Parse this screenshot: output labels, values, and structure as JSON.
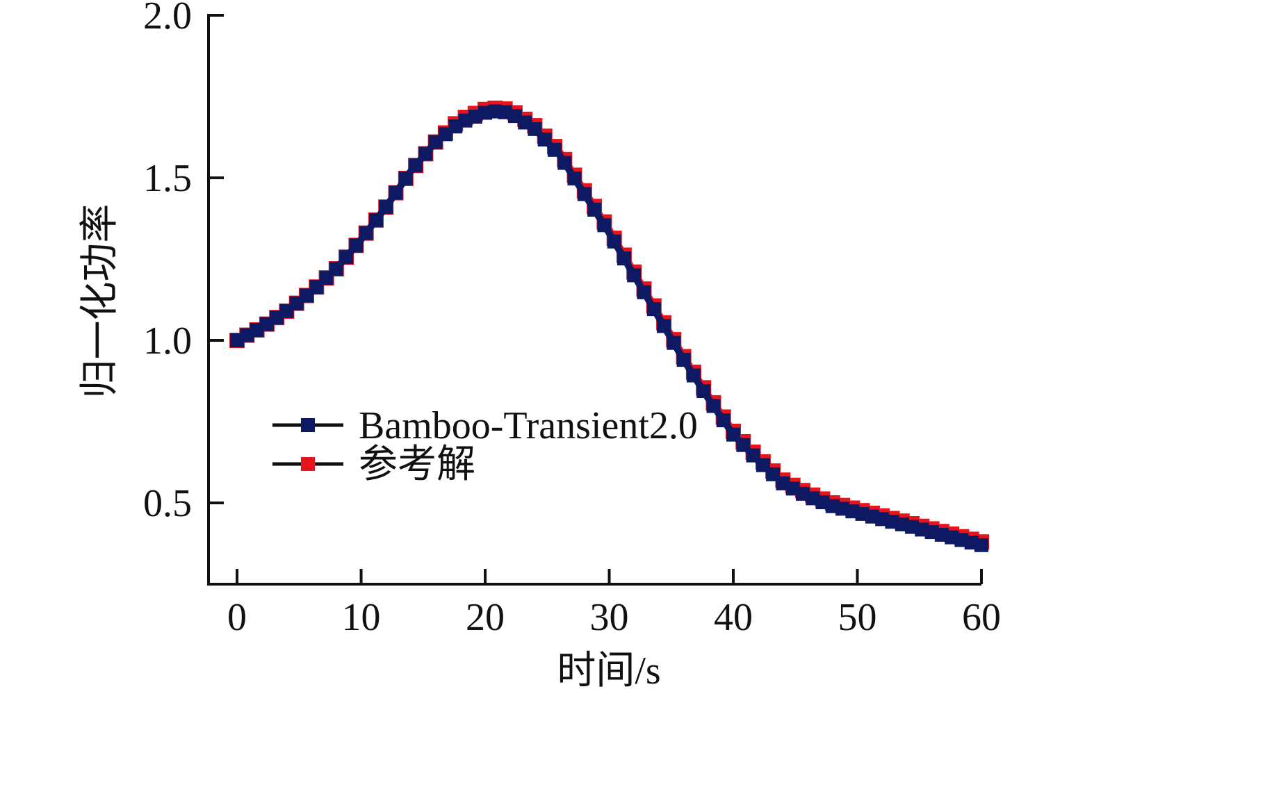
{
  "chart_data": {
    "type": "line",
    "title": "",
    "xlabel": "时间/s",
    "ylabel": "归一化功率",
    "xlim": [
      -2.3,
      60
    ],
    "ylim": [
      0.25,
      2.0
    ],
    "xticks": [
      0,
      10,
      20,
      30,
      40,
      50,
      60
    ],
    "xtick_labels": [
      "0",
      "10",
      "20",
      "30",
      "40",
      "50",
      "60"
    ],
    "yticks": [
      0.5,
      1.0,
      1.5,
      2.0
    ],
    "ytick_labels": [
      "0.5",
      "1.0",
      "1.5",
      "2.0"
    ],
    "grid": false,
    "legend_position": "left-center",
    "x": [
      0,
      2,
      4,
      6,
      8,
      10,
      12,
      14,
      16,
      18,
      20,
      21,
      22,
      24,
      26,
      28,
      30,
      32,
      34,
      36,
      38,
      40,
      42,
      44,
      46,
      48,
      50,
      52,
      54,
      56,
      58,
      60
    ],
    "series": [
      {
        "name": "Bamboo-Transient2.0",
        "color": "#0d1a63",
        "marker": "square",
        "values": [
          1.0,
          1.04,
          1.09,
          1.15,
          1.22,
          1.31,
          1.41,
          1.52,
          1.61,
          1.67,
          1.7,
          1.705,
          1.7,
          1.65,
          1.57,
          1.45,
          1.33,
          1.2,
          1.07,
          0.94,
          0.82,
          0.71,
          0.63,
          0.56,
          0.52,
          0.49,
          0.47,
          0.45,
          0.43,
          0.41,
          0.39,
          0.37
        ]
      },
      {
        "name": "参考解",
        "color": "#e8141c",
        "marker": "square",
        "values": [
          1.0,
          1.04,
          1.09,
          1.15,
          1.22,
          1.31,
          1.41,
          1.52,
          1.61,
          1.68,
          1.71,
          1.715,
          1.71,
          1.66,
          1.58,
          1.46,
          1.34,
          1.21,
          1.08,
          0.95,
          0.83,
          0.72,
          0.64,
          0.57,
          0.53,
          0.5,
          0.48,
          0.46,
          0.44,
          0.42,
          0.4,
          0.38
        ]
      }
    ]
  },
  "colors": {
    "axis": "#111111",
    "legend_line": "#111111"
  }
}
